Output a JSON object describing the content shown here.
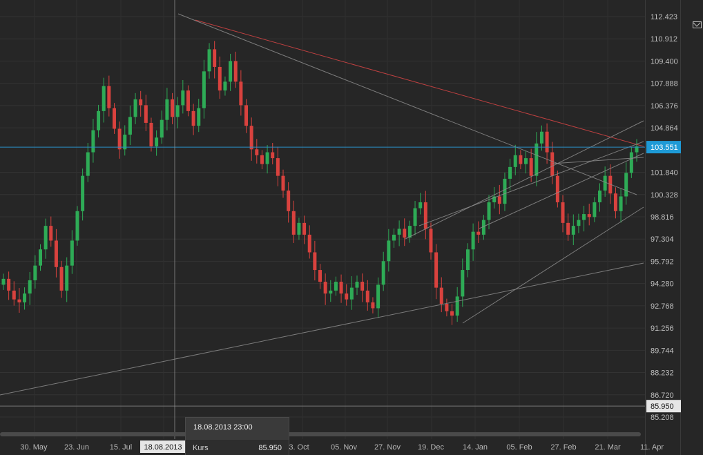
{
  "chart_data": {
    "type": "candlestick",
    "y_ticks": [
      "112.423",
      "110.912",
      "109.400",
      "107.888",
      "106.376",
      "104.864",
      "101.840",
      "100.328",
      "98.816",
      "97.304",
      "95.792",
      "94.280",
      "92.768",
      "91.256",
      "89.744",
      "88.232",
      "86.720",
      "85.208"
    ],
    "ylim": [
      84.5,
      113.3
    ],
    "x_ticks": [
      "30. May",
      "23. Jun",
      "15. Jul",
      "18.08.2013",
      "3. Oct",
      "05. Nov",
      "27. Nov",
      "19. Dec",
      "14. Jan",
      "05. Feb",
      "27. Feb",
      "21. Mar",
      "11. Apr"
    ],
    "current_price": "103.551",
    "crosshair_price": "85.950",
    "crosshair_date": "18.08.2013",
    "grid": true,
    "colors": {
      "up": "#2eab56",
      "down": "#d9423e",
      "price_line": "#2a90c8",
      "resistance": "#d94545",
      "trend": "#8c8c8c"
    },
    "price_path": [
      94.6,
      93.8,
      93.2,
      93.0,
      93.6,
      94.5,
      95.5,
      96.6,
      98.2,
      97.2,
      95.4,
      93.8,
      95.5,
      97.2,
      99.2,
      101.6,
      103.2,
      104.7,
      106.0,
      107.7,
      106.2,
      104.8,
      103.4,
      104.4,
      105.6,
      106.8,
      106.4,
      105.2,
      103.6,
      104.2,
      105.4,
      106.8,
      105.6,
      106.4,
      107.4,
      106.0,
      105.0,
      106.2,
      108.7,
      110.2,
      109.0,
      107.4,
      108.0,
      109.4,
      108.0,
      106.4,
      105.0,
      103.4,
      103.0,
      102.4,
      103.2,
      102.8,
      101.6,
      100.6,
      99.2,
      97.6,
      98.4,
      97.6,
      96.4,
      95.2,
      94.4,
      93.6,
      93.8,
      94.4,
      93.6,
      93.2,
      94.0,
      94.4,
      93.8,
      93.0,
      92.6,
      94.2,
      95.8,
      97.2,
      97.6,
      98.0,
      97.4,
      98.2,
      99.4,
      99.8,
      98.0,
      96.4,
      94.0,
      92.9,
      92.4,
      92.1,
      93.4,
      95.2,
      96.6,
      97.8,
      97.6,
      98.6,
      99.8,
      100.2,
      99.7,
      101.4,
      102.2,
      103.0,
      102.4,
      102.8,
      101.6,
      103.8,
      104.6,
      103.2,
      101.6,
      99.8,
      98.4,
      97.6,
      98.2,
      98.6,
      99.0,
      98.8,
      99.8,
      100.6,
      101.6,
      100.4,
      99.2,
      100.2,
      101.8,
      103.2,
      103.6
    ]
  },
  "tooltip": {
    "datetime": "18.08.2013 23:00",
    "label": "Kurs",
    "value": "85.950"
  }
}
